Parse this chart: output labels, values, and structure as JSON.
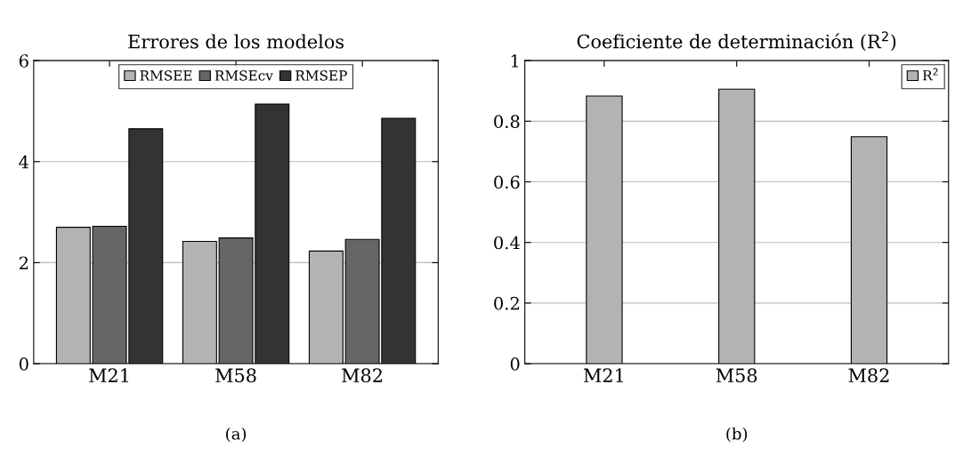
{
  "chart_data": [
    {
      "type": "bar",
      "title": "Errores de los modelos",
      "categories": [
        "M21",
        "M58",
        "M82"
      ],
      "series": [
        {
          "name": "RMSEE",
          "color": "#b3b3b3",
          "values": [
            2.7,
            2.42,
            2.23
          ]
        },
        {
          "name": "RMSEcv",
          "color": "#666666",
          "values": [
            2.72,
            2.49,
            2.46
          ]
        },
        {
          "name": "RMSEP",
          "color": "#333333",
          "values": [
            4.65,
            5.14,
            4.86
          ]
        }
      ],
      "ylim": [
        0,
        6
      ],
      "yticks": [
        0,
        2,
        4,
        6
      ],
      "grid": "y",
      "legend": "top",
      "annotations": [
        "(a)"
      ]
    },
    {
      "type": "bar",
      "title": "Coeficiente de determinación (R$^{2}$)",
      "categories": [
        "M21",
        "M58",
        "M82"
      ],
      "series": [
        {
          "name": "R$^{2}$",
          "color": "#b3b3b3",
          "values": [
            0.883,
            0.906,
            0.749
          ]
        }
      ],
      "ylim": [
        0,
        1
      ],
      "yticks": [
        0,
        0.2,
        0.4,
        0.6,
        0.8,
        1
      ],
      "grid": "y",
      "legend": "top right",
      "annotations": [
        "(b)"
      ]
    }
  ]
}
